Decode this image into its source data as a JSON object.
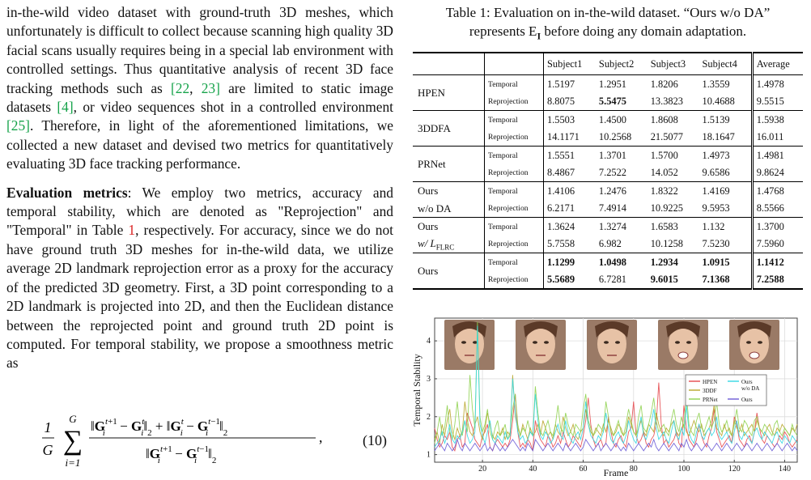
{
  "left_column": {
    "para1": {
      "t1": "in-the-wild video dataset with ground-truth 3D meshes, which unfortunately is difficult to collect because scanning high quality 3D facial scans usually requires being in a special lab environment with controlled settings. Thus quantitative analysis of recent 3D face tracking methods such as ",
      "c1": "[22",
      "t2": ", ",
      "c2": "23]",
      "t3": " are limited to static image datasets ",
      "c3": "[4]",
      "t4": ", or video sequences shot in a controlled environment ",
      "c4": "[25]",
      "t5": ". Therefore, in light of the aforementioned limitations, we collected a new dataset and devised two metrics for quantitatively evaluating 3D face tracking performance."
    },
    "para2": {
      "heading": "Evaluation metrics",
      "t1": ": We employ two metrics, accuracy and temporal stability, which are denoted as \"Reprojection\" and \"Temporal\" in Table ",
      "ref": "1",
      "t2": ", respectively. For accuracy, since we do not have ground truth 3D meshes for in-the-wild data, we utilize average 2D landmark reprojection error as a proxy for the accuracy of the predicted 3D geometry. First, a 3D point corresponding to a 2D landmark is projected into 2D, and then the Euclidean distance between the reprojected point and ground truth 2D point is computed. For temporal stability, we propose a smoothness metric as"
    },
    "equation": {
      "number": "(10)",
      "frac_num": "1",
      "frac_den": "G",
      "sum_top": "G",
      "sum_bottom": "i=1"
    }
  },
  "table": {
    "caption_line1": "Table 1: Evaluation on in-the-wild dataset. “Ours w/o DA”",
    "caption_line2_pre": "represents E",
    "caption_line2_sub": "I",
    "caption_line2_post": " before doing any domain adaptation.",
    "headers": [
      "Subject1",
      "Subject2",
      "Subject3",
      "Subject4",
      "Average"
    ],
    "rows": [
      {
        "method_l1": "HPEN",
        "method_l2": "",
        "temporal": [
          "1.5197",
          "1.2951",
          "1.8206",
          "1.3559",
          "1.4978"
        ],
        "reprojection": [
          "8.8075",
          "5.5475",
          "13.3823",
          "10.4688",
          "9.5515"
        ]
      },
      {
        "method_l1": "3DDFA",
        "method_l2": "",
        "temporal": [
          "1.5503",
          "1.4500",
          "1.8608",
          "1.5139",
          "1.5938"
        ],
        "reprojection": [
          "14.1171",
          "10.2568",
          "21.5077",
          "18.1647",
          "16.011"
        ]
      },
      {
        "method_l1": "PRNet",
        "method_l2": "",
        "temporal": [
          "1.5551",
          "1.3701",
          "1.5700",
          "1.4973",
          "1.4981"
        ],
        "reprojection": [
          "8.4867",
          "7.2522",
          "14.052",
          "9.6586",
          "9.8624"
        ]
      },
      {
        "method_l1": "Ours",
        "method_l2": "w/o DA",
        "temporal": [
          "1.4106",
          "1.2476",
          "1.8322",
          "1.4169",
          "1.4768"
        ],
        "reprojection": [
          "6.2171",
          "7.4914",
          "10.9225",
          "9.5953",
          "8.5566"
        ]
      },
      {
        "method_l1": "Ours",
        "method_l2": "w/ L",
        "method_sub": "FLRC",
        "temporal": [
          "1.3624",
          "1.3274",
          "1.6583",
          "1.132",
          "1.3700"
        ],
        "reprojection": [
          "5.7558",
          "6.982",
          "10.1258",
          "7.5230",
          "7.5960"
        ]
      },
      {
        "method_l1": "Ours",
        "method_l2": "",
        "temporal": [
          "1.1299",
          "1.0498",
          "1.2934",
          "1.0915",
          "1.1412"
        ],
        "reprojection": [
          "5.5689",
          "6.7281",
          "9.6015",
          "7.1368",
          "7.2588"
        ]
      }
    ],
    "metric_temporal": "Temporal",
    "metric_reprojection": "Reprojection"
  },
  "chart_data": {
    "type": "line",
    "xlabel": "Frame",
    "ylabel": "Temporal Stability",
    "xlim": [
      1,
      145
    ],
    "ylim": [
      0.8,
      4.6
    ],
    "xticks": [
      20,
      40,
      60,
      80,
      100,
      120,
      140
    ],
    "yticks": [
      1,
      2,
      3,
      4
    ],
    "grid": true,
    "legend_position": "right",
    "series": [
      {
        "name": "HPEN",
        "color": "#e5484d",
        "values": [
          1.7,
          1.4,
          1.2,
          1.3,
          1.5,
          1.4,
          1.6,
          1.2,
          1.1,
          1.4,
          1.5,
          1.2,
          1.3,
          2.1,
          1.9,
          1.7,
          1.4,
          1.3,
          1.2,
          1.5,
          1.6,
          1.8,
          1.2,
          1.1,
          1.3,
          1.4,
          1.3,
          1.2,
          1.3,
          1.2,
          1.4,
          1.9,
          2.6,
          1.6,
          1.2,
          1.3,
          1.2,
          1.4,
          1.3,
          1.1,
          1.9,
          1.6,
          1.4,
          1.3,
          1.2,
          1.5,
          1.4,
          1.2,
          1.3,
          1.5,
          1.3,
          1.6,
          1.4,
          1.2,
          1.3,
          1.5,
          1.4,
          1.3,
          1.2,
          1.5,
          1.9,
          2.5,
          1.8,
          1.4,
          1.2,
          1.3,
          1.4,
          1.2,
          1.3,
          2.0,
          1.6,
          1.3,
          1.2,
          1.4,
          1.5,
          1.3,
          1.2,
          1.6,
          1.7,
          2.4,
          1.5,
          1.3,
          1.4,
          1.6,
          1.3,
          1.2,
          1.4,
          1.5,
          1.8,
          2.9,
          1.8,
          1.3,
          1.4,
          1.2,
          1.3,
          1.4,
          1.6,
          1.3,
          1.2,
          2.3,
          1.7,
          1.4,
          1.3,
          1.2,
          1.4,
          1.8,
          1.5,
          1.3,
          1.2,
          1.5,
          1.7,
          2.2,
          1.6,
          1.4,
          1.2,
          1.3,
          1.4,
          1.5,
          1.3,
          2.0,
          1.8,
          1.4,
          1.3,
          1.2,
          1.4,
          1.5,
          1.3,
          1.6,
          2.1,
          1.7,
          1.4,
          1.3,
          1.5,
          1.4,
          1.3,
          1.2,
          1.3,
          1.5,
          1.4,
          1.6,
          1.5,
          1.3,
          1.2,
          1.3,
          1.4
        ]
      },
      {
        "name": "3DDF",
        "color": "#b8a52a",
        "values": [
          1.4,
          1.6,
          1.3,
          1.8,
          1.5,
          1.9,
          2.2,
          1.6,
          1.4,
          1.7,
          1.5,
          1.6,
          2.4,
          1.9,
          1.6,
          1.5,
          1.8,
          2.0,
          1.6,
          1.4,
          1.7,
          2.1,
          1.8,
          1.5,
          1.4,
          1.6,
          1.5,
          1.7,
          1.4,
          1.6,
          1.5,
          3.1,
          2.0,
          1.7,
          1.5,
          1.8,
          1.6,
          1.4,
          1.7,
          1.5,
          1.6,
          1.8,
          1.5,
          1.9,
          1.7,
          1.5,
          1.6,
          1.4,
          1.8,
          1.6,
          1.5,
          2.0,
          1.7,
          1.5,
          1.6,
          1.8,
          1.5,
          1.4,
          1.6,
          1.7,
          2.2,
          1.8,
          1.6,
          1.5,
          1.7,
          1.6,
          1.5,
          1.8,
          1.6,
          1.9,
          1.7,
          1.5,
          1.6,
          1.8,
          1.7,
          1.5,
          1.6,
          2.0,
          1.8,
          1.6,
          1.5,
          1.7,
          1.9,
          1.6,
          1.5,
          1.8,
          1.7,
          1.6,
          2.1,
          1.8,
          1.6,
          1.5,
          1.7,
          1.6,
          1.8,
          1.9,
          1.6,
          1.5,
          1.7,
          1.8,
          1.6,
          1.5,
          1.7,
          1.9,
          1.7,
          1.6,
          1.8,
          1.5,
          1.6,
          1.7,
          1.9,
          2.3,
          1.7,
          1.6,
          1.5,
          1.8,
          1.6,
          1.7,
          1.5,
          1.9,
          1.7,
          1.6,
          1.8,
          1.5,
          1.6,
          1.7,
          1.8,
          1.6,
          1.9,
          1.7,
          1.6,
          1.5,
          1.7,
          1.8,
          1.6,
          1.5,
          1.7,
          1.6,
          1.8,
          1.7,
          1.6,
          1.5,
          1.7,
          1.6,
          1.8
        ]
      },
      {
        "name": "PRNet",
        "color": "#8fd14f",
        "values": [
          1.3,
          1.6,
          2.0,
          1.5,
          1.7,
          2.3,
          1.6,
          1.4,
          1.8,
          2.4,
          1.7,
          1.5,
          1.9,
          1.6,
          3.1,
          2.2,
          1.7,
          4.5,
          2.0,
          1.6,
          1.8,
          2.2,
          1.6,
          1.4,
          1.7,
          1.9,
          1.5,
          1.6,
          1.8,
          1.4,
          1.6,
          2.2,
          2.6,
          1.8,
          1.5,
          1.7,
          1.6,
          1.9,
          1.6,
          1.5,
          2.8,
          2.1,
          1.6,
          1.5,
          1.7,
          1.9,
          1.6,
          1.5,
          1.8,
          2.3,
          1.7,
          1.6,
          2.1,
          1.8,
          1.6,
          1.5,
          1.8,
          1.7,
          1.6,
          2.2,
          2.6,
          1.9,
          1.7,
          1.5,
          1.6,
          1.8,
          1.7,
          1.6,
          2.4,
          2.0,
          1.6,
          1.5,
          1.7,
          1.9,
          1.6,
          1.5,
          1.8,
          2.2,
          1.9,
          1.6,
          1.5,
          2.0,
          2.3,
          1.7,
          1.6,
          1.8,
          2.1,
          2.5,
          1.9,
          1.6,
          1.7,
          1.8,
          1.6,
          1.5,
          1.9,
          2.2,
          1.8,
          1.6,
          2.0,
          1.7,
          2.6,
          1.8,
          1.6,
          1.5,
          1.9,
          2.1,
          1.7,
          1.6,
          1.8,
          2.0,
          1.7,
          1.9,
          2.4,
          1.8,
          1.6,
          1.7,
          1.9,
          1.6,
          1.5,
          1.8,
          2.2,
          1.7,
          1.6,
          1.9,
          1.8,
          1.6,
          1.5,
          1.9,
          2.0,
          1.7,
          1.6,
          1.8,
          1.7,
          1.6,
          1.5,
          1.8,
          1.9,
          1.6,
          1.5,
          1.7,
          1.6,
          1.5,
          1.8,
          1.6,
          1.5
        ]
      },
      {
        "name": "Ours w/o DA",
        "color": "#34d7e3",
        "values": [
          1.2,
          1.3,
          1.4,
          1.6,
          1.3,
          1.5,
          1.8,
          1.4,
          1.3,
          1.5,
          1.4,
          1.6,
          1.9,
          1.5,
          1.3,
          1.4,
          1.6,
          4.4,
          1.8,
          1.5,
          1.3,
          1.6,
          1.9,
          1.4,
          1.3,
          1.5,
          1.4,
          1.3,
          1.6,
          1.4,
          1.5,
          3.0,
          2.1,
          1.6,
          1.4,
          1.5,
          1.3,
          1.4,
          1.6,
          1.5,
          2.6,
          1.9,
          1.5,
          1.4,
          1.6,
          1.5,
          1.3,
          1.4,
          1.6,
          1.8,
          1.5,
          1.4,
          1.9,
          1.6,
          1.4,
          1.3,
          1.5,
          1.6,
          1.4,
          1.7,
          2.4,
          1.8,
          1.5,
          1.4,
          1.3,
          1.5,
          1.4,
          1.6,
          2.1,
          1.7,
          1.4,
          1.3,
          1.5,
          1.6,
          1.4,
          1.3,
          1.5,
          1.9,
          1.6,
          1.4,
          1.3,
          1.7,
          2.0,
          1.5,
          1.4,
          1.6,
          1.8,
          2.2,
          1.7,
          1.4,
          1.5,
          1.6,
          1.4,
          1.3,
          1.6,
          1.9,
          1.5,
          1.4,
          1.7,
          1.5,
          2.3,
          1.6,
          1.4,
          1.3,
          1.6,
          1.8,
          1.5,
          1.4,
          1.6,
          1.7,
          1.5,
          1.6,
          2.0,
          1.5,
          1.4,
          1.5,
          1.6,
          1.4,
          1.3,
          1.6,
          1.9,
          1.5,
          1.4,
          1.6,
          1.5,
          1.4,
          1.3,
          1.6,
          1.7,
          1.5,
          1.4,
          1.6,
          1.5,
          1.4,
          1.3,
          1.5,
          1.6,
          1.4,
          1.3,
          1.5,
          1.4,
          1.3,
          1.5,
          1.4,
          1.3
        ]
      },
      {
        "name": "Ours",
        "color": "#6b5bd6",
        "values": [
          1.1,
          1.2,
          1.3,
          1.2,
          1.1,
          1.3,
          1.2,
          1.1,
          1.2,
          1.4,
          1.2,
          1.1,
          1.3,
          1.2,
          1.1,
          1.2,
          1.3,
          1.2,
          1.1,
          1.2,
          1.3,
          1.1,
          1.2,
          1.1,
          1.3,
          1.2,
          1.1,
          1.2,
          1.1,
          1.2,
          1.3,
          1.4,
          1.3,
          1.2,
          1.1,
          1.2,
          1.1,
          1.3,
          1.2,
          1.1,
          1.4,
          1.3,
          1.2,
          1.1,
          1.2,
          1.3,
          1.2,
          1.1,
          1.2,
          1.3,
          1.2,
          1.1,
          1.3,
          1.2,
          1.1,
          1.2,
          1.3,
          1.2,
          1.1,
          1.2,
          1.4,
          1.3,
          1.2,
          1.1,
          1.2,
          1.3,
          1.1,
          1.2,
          1.3,
          1.2,
          1.1,
          1.2,
          1.3,
          1.2,
          1.1,
          1.2,
          1.1,
          1.3,
          1.2,
          1.1,
          1.2,
          1.3,
          1.2,
          1.1,
          1.2,
          1.3,
          1.2,
          1.4,
          1.2,
          1.1,
          1.2,
          1.3,
          1.2,
          1.1,
          1.2,
          1.3,
          1.2,
          1.1,
          1.3,
          1.2,
          1.4,
          1.2,
          1.1,
          1.2,
          1.3,
          1.2,
          1.1,
          1.2,
          1.3,
          1.2,
          1.1,
          1.2,
          1.3,
          1.2,
          1.1,
          1.2,
          1.3,
          1.2,
          1.1,
          1.2,
          1.3,
          1.2,
          1.1,
          1.2,
          1.3,
          1.2,
          1.1,
          1.2,
          1.3,
          1.2,
          1.1,
          1.2,
          1.3,
          1.2,
          1.1,
          1.2,
          1.3,
          1.2,
          1.1,
          1.2,
          1.3,
          1.2,
          1.1,
          1.2,
          1.1
        ]
      }
    ],
    "legend_labels": {
      "hpen": "HPEN",
      "ddf": "3DDF",
      "prnet": "PRNet",
      "ours_l1": "Ours",
      "ours_l2": "w/o DA",
      "ours": "Ours"
    }
  }
}
